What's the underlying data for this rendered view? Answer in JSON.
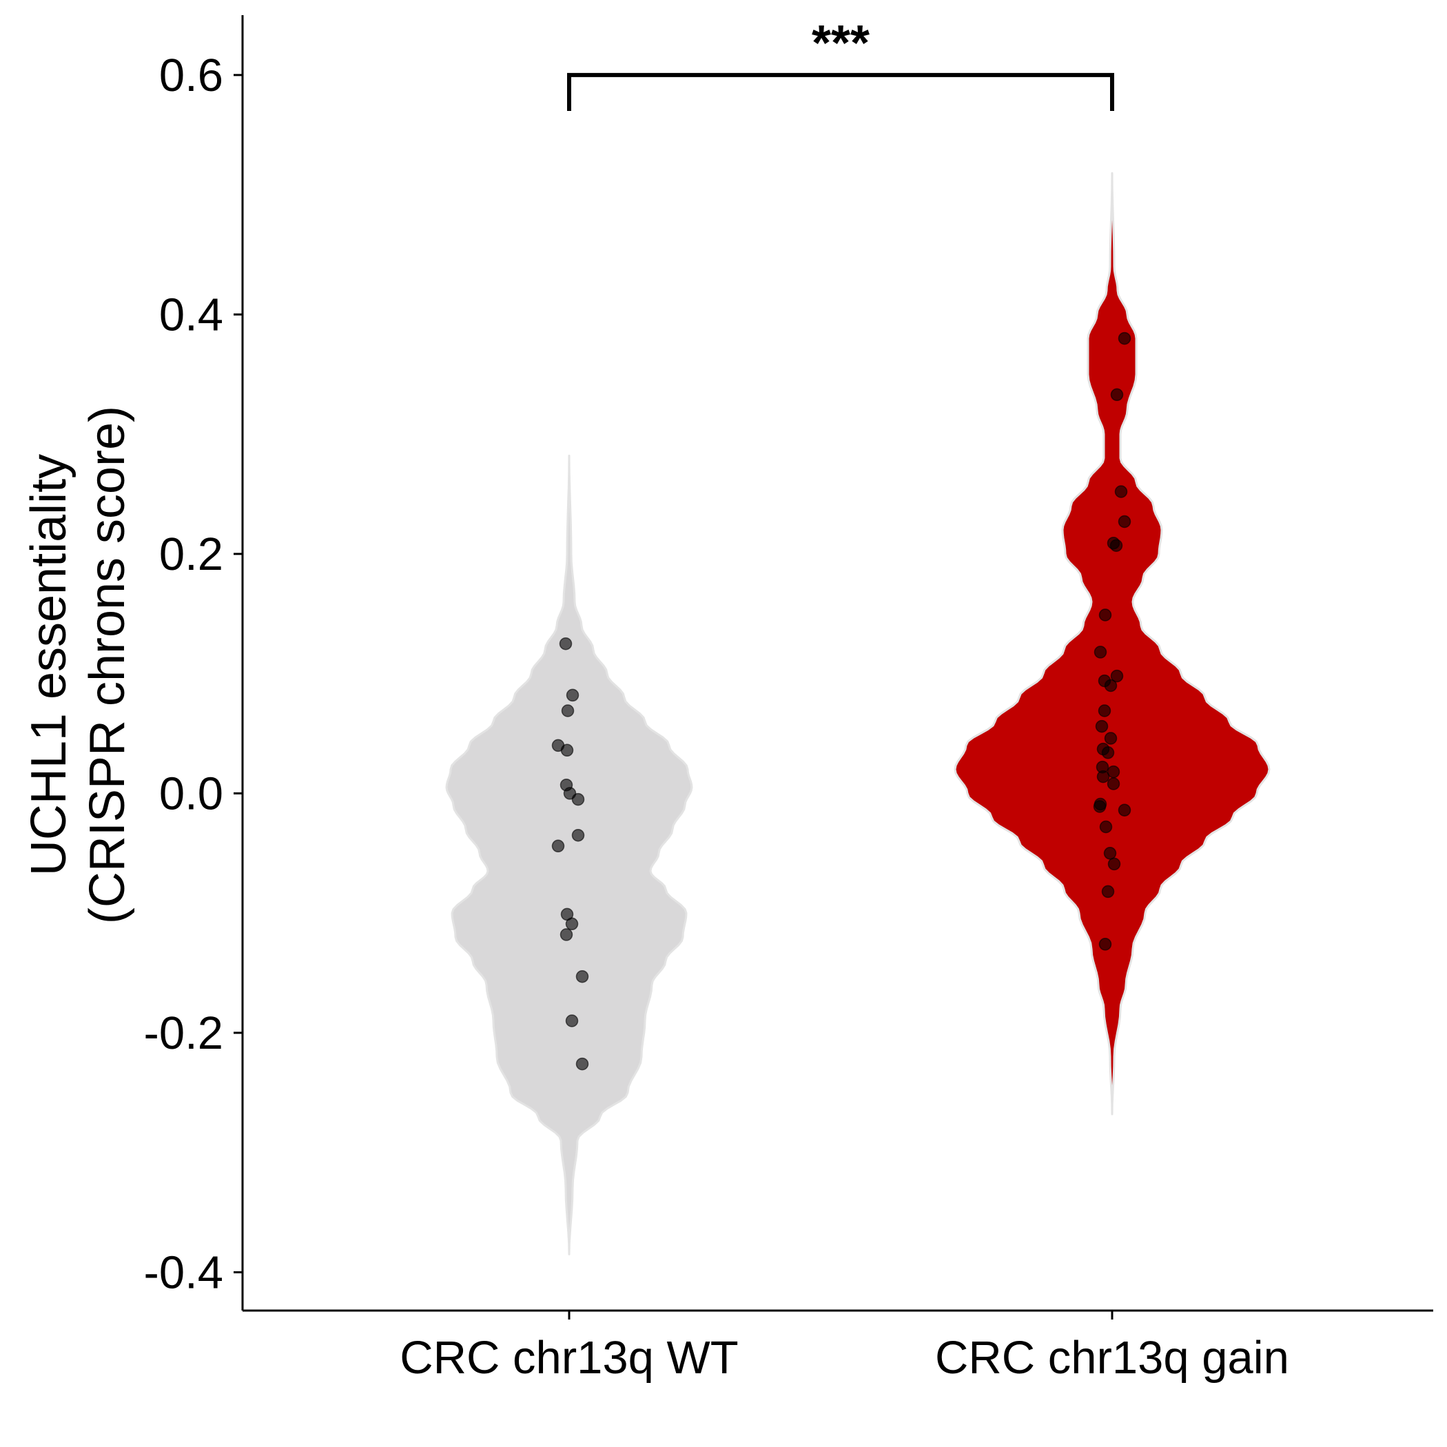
{
  "chart_data": {
    "type": "violin",
    "title": "",
    "xlabel": "",
    "ylabel_lines": [
      "UCHL1 essentiality",
      "(CRISPR chrons score)"
    ],
    "ylim": [
      -0.432,
      0.65
    ],
    "yticks": [
      -0.4,
      -0.2,
      0.0,
      0.2,
      0.4,
      0.6
    ],
    "ytick_labels": [
      "-0.4",
      "-0.2",
      "0.0",
      "0.2",
      "0.4",
      "0.6"
    ],
    "categories": [
      "CRC chr13q WT",
      "CRC chr13q gain"
    ],
    "colors": {
      "wt": "#d9d8d9",
      "gain": "#c00000",
      "outline": "#e3e3e3",
      "point": "#000000"
    },
    "significance": {
      "label": "***",
      "y": 0.6,
      "tip_bottom": 0.57,
      "between": [
        0,
        1
      ]
    },
    "series": [
      {
        "name": "CRC chr13q WT",
        "fill": "#d9d8d9",
        "range": [
          -0.385,
          0.282
        ],
        "profile": [
          [
            -0.385,
            0.0
          ],
          [
            -0.33,
            0.005
          ],
          [
            -0.29,
            0.012
          ],
          [
            -0.27,
            0.045
          ],
          [
            -0.25,
            0.085
          ],
          [
            -0.22,
            0.105
          ],
          [
            -0.19,
            0.11
          ],
          [
            -0.16,
            0.12
          ],
          [
            -0.14,
            0.14
          ],
          [
            -0.12,
            0.165
          ],
          [
            -0.1,
            0.17
          ],
          [
            -0.08,
            0.14
          ],
          [
            -0.065,
            0.118
          ],
          [
            -0.05,
            0.13
          ],
          [
            -0.03,
            0.15
          ],
          [
            -0.01,
            0.168
          ],
          [
            0.005,
            0.178
          ],
          [
            0.02,
            0.172
          ],
          [
            0.04,
            0.145
          ],
          [
            0.06,
            0.11
          ],
          [
            0.08,
            0.08
          ],
          [
            0.1,
            0.055
          ],
          [
            0.12,
            0.035
          ],
          [
            0.14,
            0.018
          ],
          [
            0.16,
            0.008
          ],
          [
            0.2,
            0.003
          ],
          [
            0.282,
            0.0
          ]
        ],
        "points": [
          [
            -0.005,
            0.125
          ],
          [
            0.005,
            0.082
          ],
          [
            -0.002,
            0.069
          ],
          [
            -0.016,
            0.04
          ],
          [
            -0.003,
            0.036
          ],
          [
            -0.004,
            0.007
          ],
          [
            0.001,
            0.0
          ],
          [
            0.013,
            -0.005
          ],
          [
            0.013,
            -0.035
          ],
          [
            -0.016,
            -0.044
          ],
          [
            -0.003,
            -0.101
          ],
          [
            0.004,
            -0.109
          ],
          [
            -0.004,
            -0.118
          ],
          [
            0.019,
            -0.153
          ],
          [
            0.004,
            -0.19
          ],
          [
            0.019,
            -0.226
          ]
        ]
      },
      {
        "name": "CRC chr13q gain",
        "fill": "#c00000",
        "range": [
          -0.268,
          0.518
        ],
        "profile": [
          [
            -0.268,
            0.0
          ],
          [
            -0.22,
            0.003
          ],
          [
            -0.18,
            0.012
          ],
          [
            -0.16,
            0.02
          ],
          [
            -0.13,
            0.03
          ],
          [
            -0.1,
            0.048
          ],
          [
            -0.08,
            0.07
          ],
          [
            -0.06,
            0.1
          ],
          [
            -0.04,
            0.135
          ],
          [
            -0.02,
            0.175
          ],
          [
            0.0,
            0.21
          ],
          [
            0.02,
            0.228
          ],
          [
            0.04,
            0.212
          ],
          [
            0.06,
            0.17
          ],
          [
            0.08,
            0.135
          ],
          [
            0.1,
            0.1
          ],
          [
            0.12,
            0.07
          ],
          [
            0.14,
            0.042
          ],
          [
            0.16,
            0.03
          ],
          [
            0.18,
            0.045
          ],
          [
            0.2,
            0.068
          ],
          [
            0.22,
            0.072
          ],
          [
            0.24,
            0.06
          ],
          [
            0.26,
            0.035
          ],
          [
            0.28,
            0.012
          ],
          [
            0.3,
            0.012
          ],
          [
            0.32,
            0.022
          ],
          [
            0.35,
            0.035
          ],
          [
            0.38,
            0.035
          ],
          [
            0.4,
            0.022
          ],
          [
            0.42,
            0.008
          ],
          [
            0.44,
            0.003
          ],
          [
            0.518,
            0.0
          ]
        ],
        "points": [
          [
            0.018,
            0.38
          ],
          [
            0.007,
            0.333
          ],
          [
            0.013,
            0.252
          ],
          [
            0.018,
            0.227
          ],
          [
            0.002,
            0.209
          ],
          [
            0.006,
            0.207
          ],
          [
            -0.01,
            0.149
          ],
          [
            -0.017,
            0.118
          ],
          [
            0.007,
            0.098
          ],
          [
            -0.011,
            0.094
          ],
          [
            -0.002,
            0.09
          ],
          [
            -0.011,
            0.069
          ],
          [
            -0.015,
            0.056
          ],
          [
            -0.002,
            0.046
          ],
          [
            -0.013,
            0.037
          ],
          [
            -0.006,
            0.034
          ],
          [
            -0.014,
            0.022
          ],
          [
            0.002,
            0.018
          ],
          [
            -0.013,
            0.014
          ],
          [
            0.002,
            0.008
          ],
          [
            -0.017,
            -0.009
          ],
          [
            -0.018,
            -0.011
          ],
          [
            0.018,
            -0.014
          ],
          [
            -0.009,
            -0.028
          ],
          [
            -0.003,
            -0.05
          ],
          [
            0.003,
            -0.059
          ],
          [
            -0.006,
            -0.082
          ],
          [
            -0.01,
            -0.126
          ]
        ]
      }
    ]
  }
}
